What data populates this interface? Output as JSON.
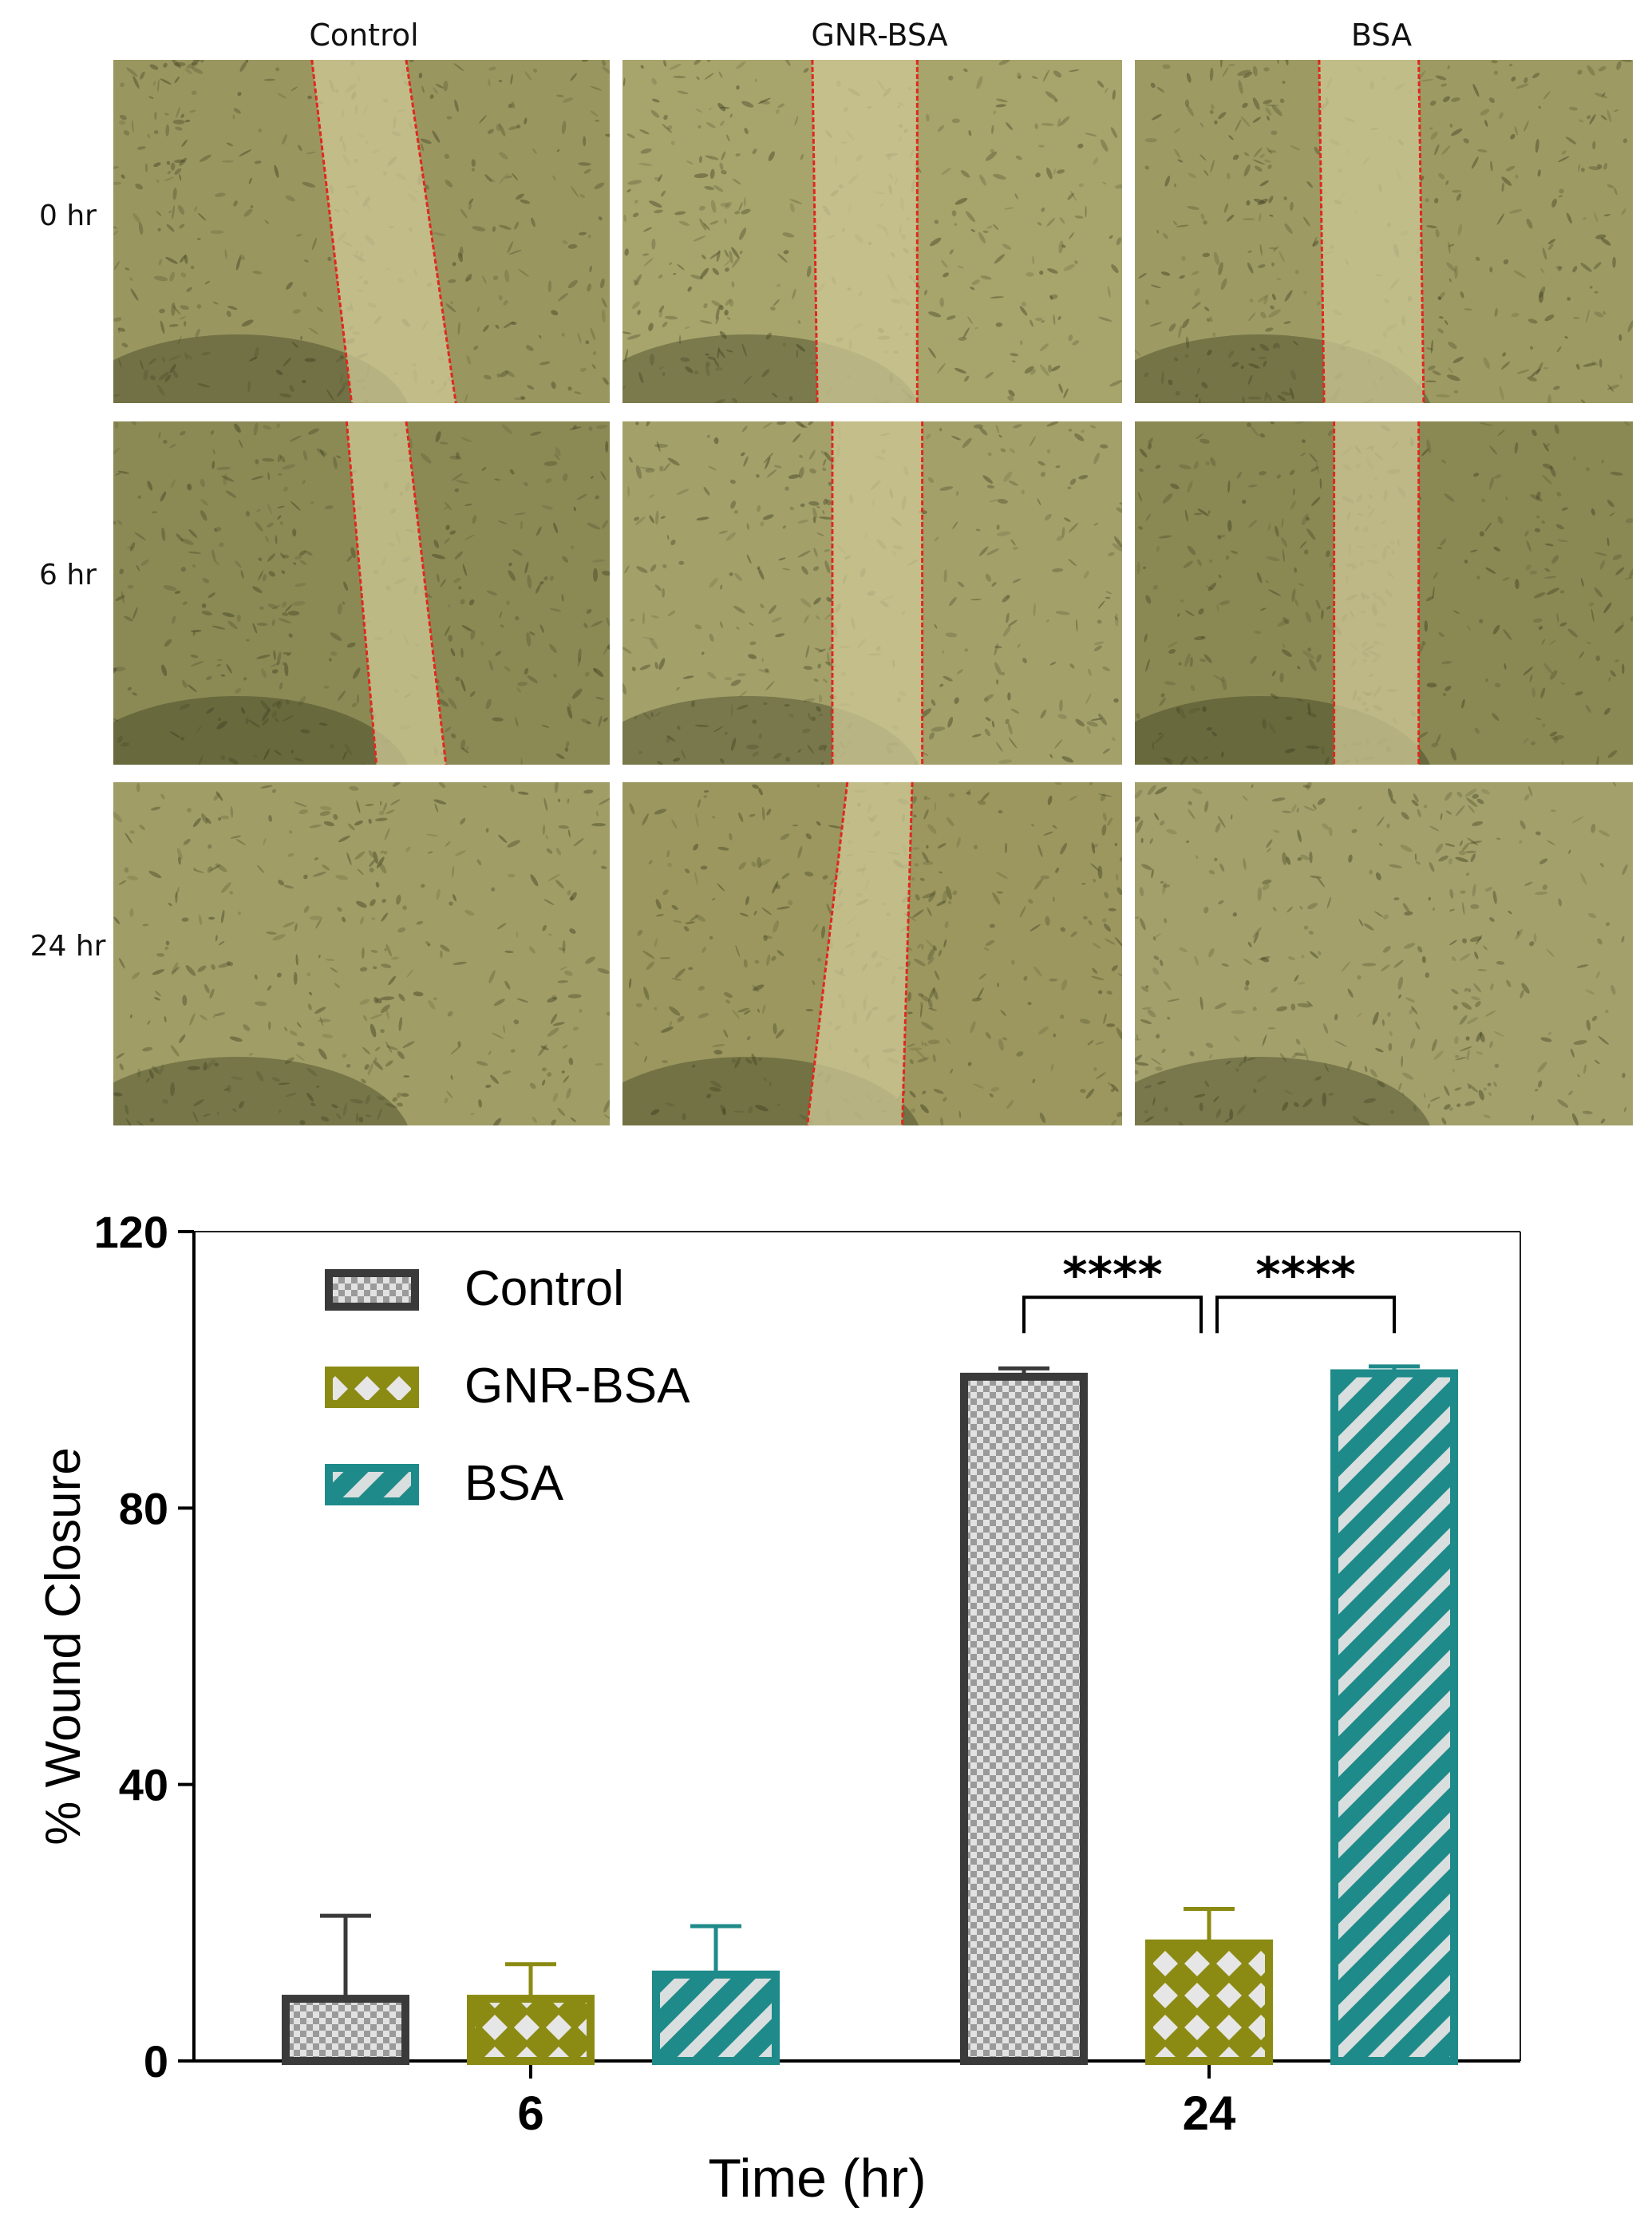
{
  "microscopy": {
    "columns": [
      "Control",
      "GNR-BSA",
      "BSA"
    ],
    "rows": [
      "0 hr",
      "6 hr",
      "24 hr"
    ],
    "panels": [
      [
        {
          "wound": true
        },
        {
          "wound": true
        },
        {
          "wound": true
        }
      ],
      [
        {
          "wound": true
        },
        {
          "wound": true
        },
        {
          "wound": true
        }
      ],
      [
        {
          "wound": false
        },
        {
          "wound": true
        },
        {
          "wound": false
        }
      ]
    ]
  },
  "chart_data": {
    "type": "bar",
    "xlabel": "Time (hr)",
    "ylabel": "% Wound Closure",
    "categories": [
      "6",
      "24"
    ],
    "ylim": [
      0,
      120
    ],
    "yticks": [
      0,
      40,
      80,
      120
    ],
    "legend_position": "top-left",
    "series": [
      {
        "name": "Control",
        "color": "#3a3a3a",
        "pattern": "checker",
        "values": [
          9,
          99
        ],
        "errors": [
          12,
          1.2
        ]
      },
      {
        "name": "GNR-BSA",
        "color": "#8b8b13",
        "pattern": "crosshatch",
        "values": [
          9,
          17
        ],
        "errors": [
          5,
          5
        ]
      },
      {
        "name": "BSA",
        "color": "#1f8a8a",
        "pattern": "diagonal",
        "values": [
          12.5,
          99.5
        ],
        "errors": [
          7,
          1
        ]
      }
    ],
    "significance": [
      {
        "label": "****",
        "from": "Control",
        "to": "GNR-BSA",
        "category": "24"
      },
      {
        "label": "****",
        "from": "GNR-BSA",
        "to": "BSA",
        "category": "24"
      }
    ]
  }
}
